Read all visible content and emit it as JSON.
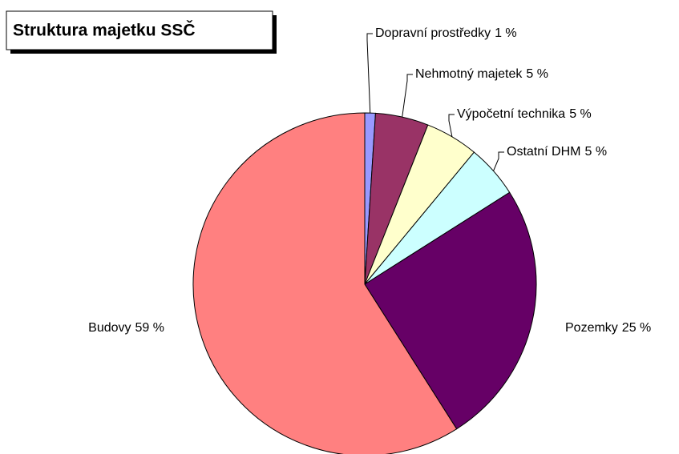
{
  "chart_data": {
    "type": "pie",
    "title": "Struktura majetku SSČ",
    "categories": [
      "Dopravní prostředky",
      "Nehmotný majetek",
      "Výpočetní technika",
      "Ostatní DHM",
      "Pozemky",
      "Budovy"
    ],
    "values": [
      1,
      5,
      5,
      5,
      25,
      59
    ],
    "value_labels": [
      "1 %",
      "5 %",
      "5 %",
      "5 %",
      "25 %",
      "59 %"
    ],
    "colors": [
      "#9999ff",
      "#993366",
      "#ffffcc",
      "#ccffff",
      "#660066",
      "#ff8080"
    ]
  }
}
